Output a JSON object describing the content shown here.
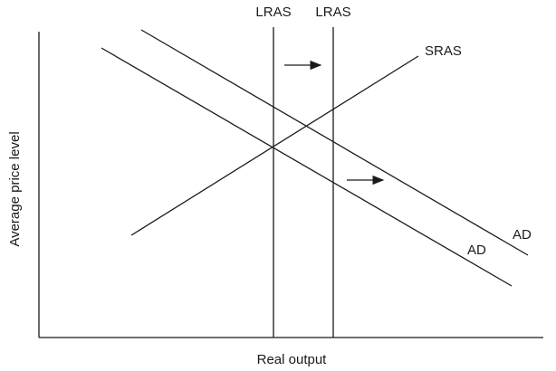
{
  "diagram": {
    "title": "",
    "x_axis_label": "Real output",
    "y_axis_label": "Average price level",
    "curves": {
      "lras_original": {
        "label": "LRAS",
        "kind": "vertical"
      },
      "lras_shifted": {
        "label": "LRAS",
        "kind": "vertical"
      },
      "sras": {
        "label": "SRAS",
        "slope": "upward"
      },
      "ad_original": {
        "label": "AD",
        "slope": "downward"
      },
      "ad_shifted": {
        "label": "AD",
        "slope": "downward"
      }
    },
    "shift_arrows": [
      {
        "meaning": "LRAS shifts right",
        "direction": "right"
      },
      {
        "meaning": "AD shifts right",
        "direction": "right"
      }
    ],
    "colors": {
      "line": "#1a1a1a",
      "background": "#ffffff"
    }
  }
}
